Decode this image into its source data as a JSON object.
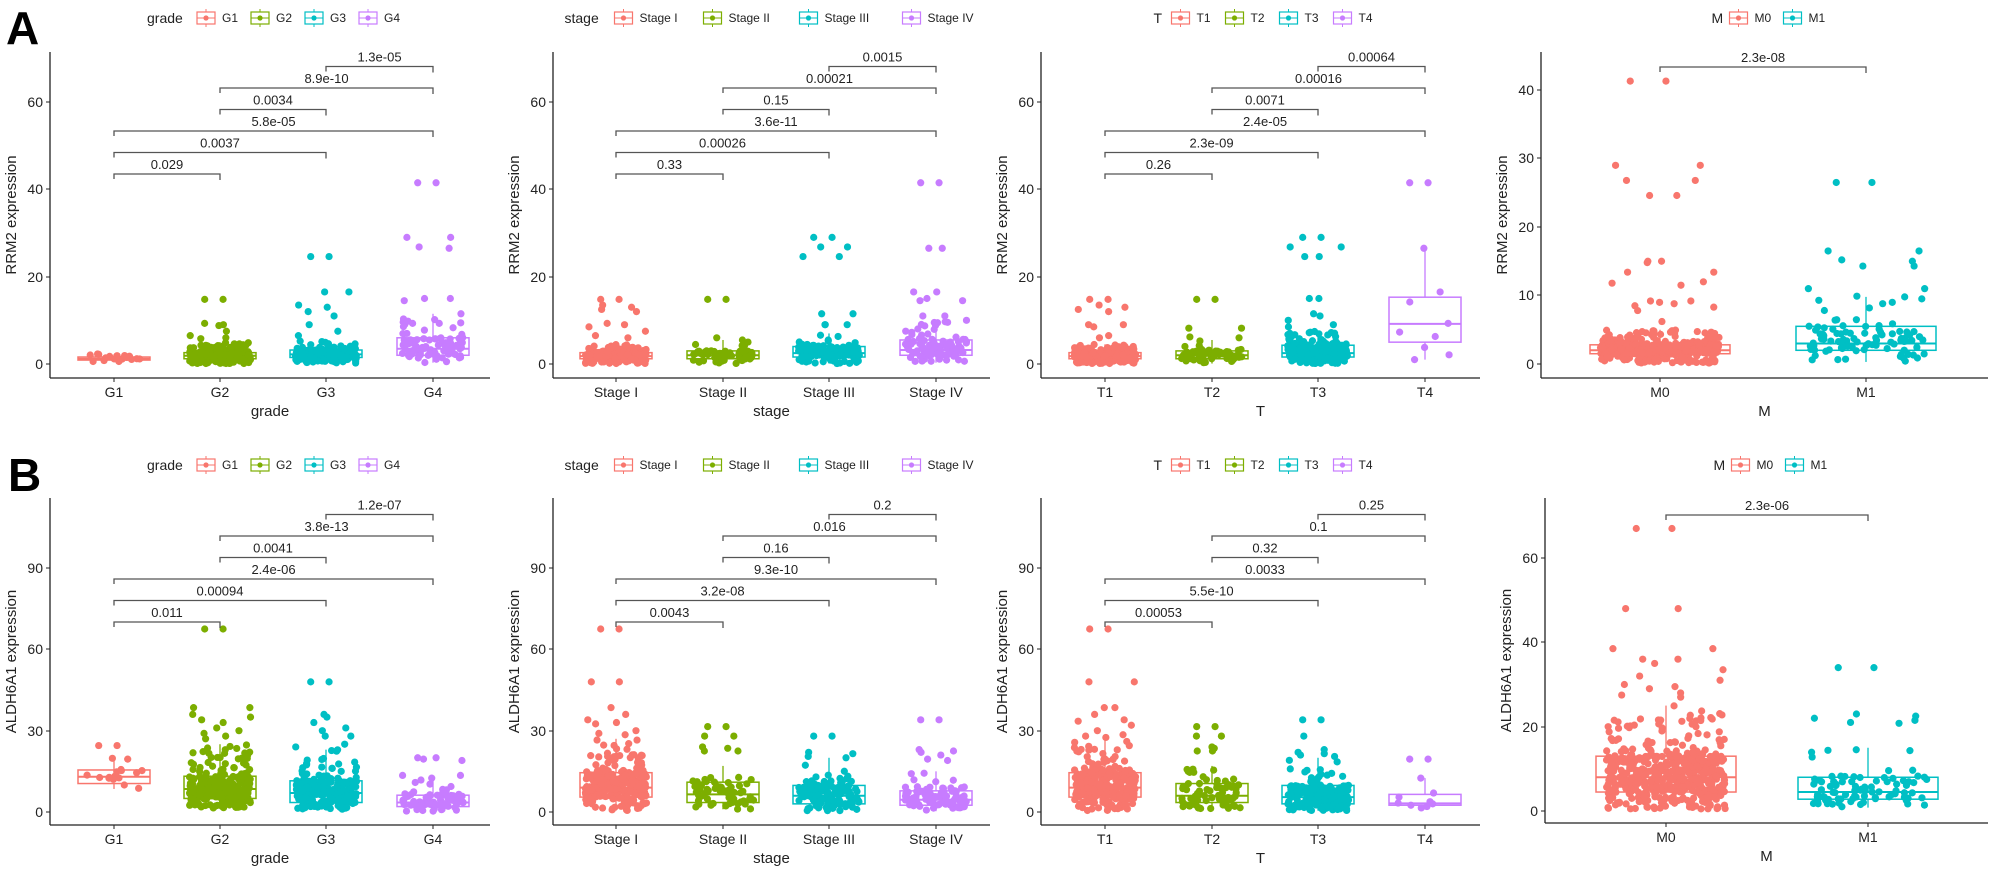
{
  "figure": {
    "panel_labels": [
      "A",
      "B"
    ],
    "palette": {
      "4": [
        "#F8766D",
        "#7CAE00",
        "#00BFC4",
        "#C77CFF"
      ],
      "2": [
        "#F8766D",
        "#00BFC4"
      ]
    },
    "bracket_color": "#555555",
    "axis_color": "#222222"
  },
  "chart_data": [
    {
      "id": "A-grade",
      "row": "A",
      "type": "box-jitter",
      "legend_title": "grade",
      "legend_position": "top",
      "categories": [
        "G1",
        "G2",
        "G3",
        "G4"
      ],
      "xlabel": "grade",
      "ylabel": "RRM2 expression",
      "yticks": [
        0,
        20,
        40,
        60
      ],
      "ylim": [
        -3,
        72
      ],
      "boxes": [
        {
          "q1": 0.9,
          "median": 1.2,
          "q3": 1.6,
          "wlo": 0.5,
          "whi": 2.2
        },
        {
          "q1": 1.2,
          "median": 1.9,
          "q3": 2.6,
          "wlo": 0.1,
          "whi": 5.0
        },
        {
          "q1": 1.5,
          "median": 2.2,
          "q3": 3.2,
          "wlo": 0.1,
          "whi": 5.5
        },
        {
          "q1": 2.0,
          "median": 3.5,
          "q3": 6.0,
          "wlo": 0.3,
          "whi": 11.5
        }
      ],
      "outliers": [
        [
          2.2,
          1.9,
          2.3
        ],
        [
          14.8,
          14.8,
          9.3,
          9.0,
          8.8,
          7.5,
          6.5,
          6.0,
          5.8
        ],
        [
          24.6,
          24.6,
          16.5,
          16.5,
          13.5,
          13.0,
          12.0,
          11.0,
          9.0,
          7.5,
          6.5
        ],
        [
          41.5,
          41.5,
          29.0,
          29.0,
          26.8,
          26.5,
          15.0,
          15.0,
          14.5,
          11.5,
          9.8,
          9.3,
          9.3,
          8.3,
          7.0
        ]
      ],
      "n_points": [
        14,
        300,
        200,
        80
      ],
      "comparisons": [
        {
          "from": 0,
          "to": 1,
          "p": "0.029"
        },
        {
          "from": 0,
          "to": 2,
          "p": "0.0037"
        },
        {
          "from": 0,
          "to": 3,
          "p": "5.8e-05"
        },
        {
          "from": 1,
          "to": 2,
          "p": "0.0034"
        },
        {
          "from": 1,
          "to": 3,
          "p": "8.9e-10"
        },
        {
          "from": 2,
          "to": 3,
          "p": "1.3e-05"
        }
      ]
    },
    {
      "id": "A-stage",
      "row": "A",
      "type": "box-jitter",
      "legend_title": "stage",
      "legend_position": "top",
      "categories": [
        "Stage I",
        "Stage II",
        "Stage III",
        "Stage IV"
      ],
      "xlabel": "stage",
      "ylabel": "RRM2 expression",
      "yticks": [
        0,
        20,
        40,
        60
      ],
      "ylim": [
        -3,
        72
      ],
      "boxes": [
        {
          "q1": 1.2,
          "median": 1.8,
          "q3": 2.6,
          "wlo": 0.1,
          "whi": 4.5
        },
        {
          "q1": 1.2,
          "median": 2.0,
          "q3": 3.0,
          "wlo": 0.1,
          "whi": 5.5
        },
        {
          "q1": 1.6,
          "median": 2.5,
          "q3": 4.0,
          "wlo": 0.1,
          "whi": 7.0
        },
        {
          "q1": 2.0,
          "median": 3.2,
          "q3": 5.5,
          "wlo": 0.3,
          "whi": 10.0
        }
      ],
      "outliers": [
        [
          14.8,
          14.8,
          13.5,
          13.0,
          12.5,
          12.0,
          9.3,
          9.0,
          8.5,
          7.5,
          6.5,
          6.0
        ],
        [
          14.8,
          14.8,
          6.0,
          5.5
        ],
        [
          29.0,
          29.0,
          26.8,
          26.8,
          24.6,
          24.6,
          11.5,
          11.5,
          9.0,
          9.0,
          9.0
        ],
        [
          41.5,
          41.5,
          26.5,
          26.5,
          16.5,
          16.5,
          15.0,
          14.5,
          14.5,
          11.0,
          11.0,
          10.0,
          9.5
        ]
      ],
      "n_points": [
        260,
        60,
        120,
        90
      ],
      "comparisons": [
        {
          "from": 0,
          "to": 1,
          "p": "0.33"
        },
        {
          "from": 0,
          "to": 2,
          "p": "0.00026"
        },
        {
          "from": 0,
          "to": 3,
          "p": "3.6e-11"
        },
        {
          "from": 1,
          "to": 2,
          "p": "0.15"
        },
        {
          "from": 1,
          "to": 3,
          "p": "0.00021"
        },
        {
          "from": 2,
          "to": 3,
          "p": "0.0015"
        }
      ]
    },
    {
      "id": "A-T",
      "row": "A",
      "type": "box-jitter",
      "legend_title": "T",
      "legend_position": "top",
      "categories": [
        "T1",
        "T2",
        "T3",
        "T4"
      ],
      "xlabel": "T",
      "ylabel": "RRM2 expression",
      "yticks": [
        0,
        20,
        40,
        60
      ],
      "ylim": [
        -3,
        72
      ],
      "boxes": [
        {
          "q1": 1.2,
          "median": 1.8,
          "q3": 2.6,
          "wlo": 0.1,
          "whi": 4.5
        },
        {
          "q1": 1.2,
          "median": 2.0,
          "q3": 3.0,
          "wlo": 0.1,
          "whi": 5.5
        },
        {
          "q1": 1.6,
          "median": 2.5,
          "q3": 4.3,
          "wlo": 0.1,
          "whi": 7.5
        },
        {
          "q1": 5.0,
          "median": 9.2,
          "q3": 15.3,
          "wlo": 1.0,
          "whi": 26.5
        }
      ],
      "outliers": [
        [
          14.8,
          14.8,
          13.5,
          13.0,
          12.5,
          12.0,
          9.0,
          9.0,
          8.5,
          6.5,
          6.0
        ],
        [
          14.8,
          14.8,
          8.2,
          8.2,
          6.2,
          6.0
        ],
        [
          29.0,
          29.0,
          26.8,
          26.8,
          24.6,
          24.6,
          15.0,
          15.0,
          11.5,
          11.0,
          10.0,
          9.0,
          8.5
        ],
        [
          41.5,
          41.5,
          26.5,
          16.5,
          14.2,
          9.3,
          7.3,
          6.3,
          3.8,
          2.1,
          1.0
        ]
      ],
      "n_points": [
        280,
        70,
        200,
        0
      ],
      "comparisons": [
        {
          "from": 0,
          "to": 1,
          "p": "0.26"
        },
        {
          "from": 0,
          "to": 2,
          "p": "2.3e-09"
        },
        {
          "from": 0,
          "to": 3,
          "p": "2.4e-05"
        },
        {
          "from": 1,
          "to": 2,
          "p": "0.0071"
        },
        {
          "from": 1,
          "to": 3,
          "p": "0.00016"
        },
        {
          "from": 2,
          "to": 3,
          "p": "0.00064"
        }
      ]
    },
    {
      "id": "A-M",
      "row": "A",
      "type": "box-jitter",
      "legend_title": "M",
      "legend_position": "top",
      "categories": [
        "M0",
        "M1"
      ],
      "xlabel": "M",
      "ylabel": "RRM2 expression",
      "yticks": [
        0,
        10,
        20,
        30,
        40
      ],
      "ylim": [
        -2,
        45
      ],
      "boxes": [
        {
          "q1": 1.5,
          "median": 2.0,
          "q3": 2.8,
          "wlo": 0.1,
          "whi": 5.0
        },
        {
          "q1": 2.0,
          "median": 3.0,
          "q3": 5.5,
          "wlo": 0.3,
          "whi": 9.8
        }
      ],
      "outliers": [
        [
          41.3,
          41.3,
          29.0,
          29.0,
          26.8,
          26.8,
          24.6,
          24.6,
          15.0,
          15.0,
          14.8,
          13.4,
          13.4,
          12.0,
          11.8,
          11.5,
          9.2,
          9.2,
          9.0,
          8.8,
          8.5,
          8.3,
          7.8,
          6.2
        ],
        [
          26.5,
          26.5,
          16.5,
          16.5,
          15.2,
          15.0,
          14.3,
          14.3,
          11.0,
          11.0,
          9.9,
          9.8,
          9.3,
          9.0
        ]
      ],
      "n_points": [
        500,
        90
      ],
      "comparisons": [
        {
          "from": 0,
          "to": 1,
          "p": "2.3e-08"
        }
      ]
    },
    {
      "id": "B-grade",
      "row": "B",
      "type": "box-jitter",
      "legend_title": "grade",
      "legend_position": "top",
      "categories": [
        "G1",
        "G2",
        "G3",
        "G4"
      ],
      "xlabel": "grade",
      "ylabel": "ALDH6A1 expression",
      "yticks": [
        0,
        30,
        60,
        90
      ],
      "ylim": [
        -4,
        116
      ],
      "boxes": [
        {
          "q1": 10.5,
          "median": 13.0,
          "q3": 15.5,
          "wlo": 8.5,
          "whi": 20.0
        },
        {
          "q1": 5.0,
          "median": 8.5,
          "q3": 13.2,
          "wlo": 1.5,
          "whi": 25.0
        },
        {
          "q1": 3.5,
          "median": 7.0,
          "q3": 11.5,
          "wlo": 1.0,
          "whi": 23.0
        },
        {
          "q1": 2.0,
          "median": 3.5,
          "q3": 6.2,
          "wlo": 0.3,
          "whi": 12.0
        }
      ],
      "outliers": [
        [
          24.5,
          24.5,
          19.8,
          19.5
        ],
        [
          67.5,
          67.5,
          38.5,
          38.5,
          36.0,
          35.0,
          34.0,
          33.0,
          31.0,
          30.0,
          29.0,
          28.0,
          27.0
        ],
        [
          48.0,
          48.0,
          36.0,
          35.0,
          33.0,
          31.0,
          30.0,
          28.0,
          28.0,
          25.0,
          24.0
        ],
        [
          20.0,
          20.0,
          19.5,
          19.0,
          13.5,
          13.5,
          12.5
        ]
      ],
      "n_points": [
        14,
        300,
        200,
        80
      ],
      "comparisons": [
        {
          "from": 0,
          "to": 1,
          "p": "0.011"
        },
        {
          "from": 0,
          "to": 2,
          "p": "0.00094"
        },
        {
          "from": 0,
          "to": 3,
          "p": "2.4e-06"
        },
        {
          "from": 1,
          "to": 2,
          "p": "0.0041"
        },
        {
          "from": 1,
          "to": 3,
          "p": "3.8e-13"
        },
        {
          "from": 2,
          "to": 3,
          "p": "1.2e-07"
        }
      ]
    },
    {
      "id": "B-stage",
      "row": "B",
      "type": "box-jitter",
      "legend_title": "stage",
      "legend_position": "top",
      "categories": [
        "Stage I",
        "Stage II",
        "Stage III",
        "Stage IV"
      ],
      "xlabel": "stage",
      "ylabel": "ALDH6A1 expression",
      "yticks": [
        0,
        30,
        60,
        90
      ],
      "ylim": [
        -4,
        116
      ],
      "boxes": [
        {
          "q1": 5.5,
          "median": 9.0,
          "q3": 14.5,
          "wlo": 0.5,
          "whi": 27.0
        },
        {
          "q1": 3.5,
          "median": 6.5,
          "q3": 11.0,
          "wlo": 1.0,
          "whi": 17.0
        },
        {
          "q1": 3.0,
          "median": 6.0,
          "q3": 9.8,
          "wlo": 0.5,
          "whi": 20.0
        },
        {
          "q1": 2.5,
          "median": 4.5,
          "q3": 7.8,
          "wlo": 0.3,
          "whi": 15.0
        }
      ],
      "outliers": [
        [
          67.5,
          67.5,
          48.0,
          48.0,
          38.5,
          36.0,
          34.0,
          33.0,
          32.5,
          30.0,
          29.0,
          28.5
        ],
        [
          31.5,
          31.5,
          28.0,
          28.0,
          24.0,
          23.5,
          22.5,
          22.5
        ],
        [
          28.0,
          28.0,
          22.0,
          21.5,
          20.5,
          20.0
        ],
        [
          34.0,
          34.0,
          23.0,
          22.5,
          22.0,
          21.0,
          19.5,
          19.0
        ]
      ],
      "n_points": [
        260,
        60,
        120,
        90
      ],
      "comparisons": [
        {
          "from": 0,
          "to": 1,
          "p": "0.0043"
        },
        {
          "from": 0,
          "to": 2,
          "p": "3.2e-08"
        },
        {
          "from": 0,
          "to": 3,
          "p": "9.3e-10"
        },
        {
          "from": 1,
          "to": 2,
          "p": "0.16"
        },
        {
          "from": 1,
          "to": 3,
          "p": "0.016"
        },
        {
          "from": 2,
          "to": 3,
          "p": "0.2"
        }
      ]
    },
    {
      "id": "B-T",
      "row": "B",
      "type": "box-jitter",
      "legend_title": "T",
      "legend_position": "top",
      "categories": [
        "T1",
        "T2",
        "T3",
        "T4"
      ],
      "xlabel": "T",
      "ylabel": "ALDH6A1 expression",
      "yticks": [
        0,
        30,
        60,
        90
      ],
      "ylim": [
        -4,
        116
      ],
      "boxes": [
        {
          "q1": 5.5,
          "median": 9.0,
          "q3": 14.5,
          "wlo": 0.5,
          "whi": 27.0
        },
        {
          "q1": 3.5,
          "median": 6.0,
          "q3": 10.5,
          "wlo": 1.0,
          "whi": 17.0
        },
        {
          "q1": 3.0,
          "median": 5.5,
          "q3": 9.8,
          "wlo": 0.5,
          "whi": 20.0
        },
        {
          "q1": 2.5,
          "median": 3.2,
          "q3": 6.5,
          "wlo": 1.5,
          "whi": 12.5
        }
      ],
      "outliers": [
        [
          67.5,
          67.5,
          48.0,
          48.0,
          38.5,
          38.5,
          36.0,
          34.0,
          33.5,
          32.0,
          30.0,
          28.5,
          28.0,
          27.5
        ],
        [
          31.5,
          31.5,
          28.0,
          28.0,
          24.0,
          23.5,
          22.5,
          22.5
        ],
        [
          34.0,
          34.0,
          28.0,
          23.0,
          22.0,
          21.5,
          21.0,
          20.5
        ],
        [
          19.5,
          19.5,
          12.5,
          7.0,
          5.5,
          3.8,
          3.3,
          3.0,
          2.5,
          2.0,
          1.5
        ]
      ],
      "n_points": [
        280,
        70,
        200,
        0
      ],
      "comparisons": [
        {
          "from": 0,
          "to": 1,
          "p": "0.00053"
        },
        {
          "from": 0,
          "to": 2,
          "p": "5.5e-10"
        },
        {
          "from": 0,
          "to": 3,
          "p": "0.0033"
        },
        {
          "from": 1,
          "to": 2,
          "p": "0.32"
        },
        {
          "from": 1,
          "to": 3,
          "p": "0.1"
        },
        {
          "from": 2,
          "to": 3,
          "p": "0.25"
        }
      ]
    },
    {
      "id": "B-M",
      "row": "B",
      "type": "box-jitter",
      "legend_title": "M",
      "legend_position": "top",
      "categories": [
        "M0",
        "M1"
      ],
      "xlabel": "M",
      "ylabel": "ALDH6A1 expression",
      "yticks": [
        0,
        20,
        40,
        60
      ],
      "ylim": [
        -3,
        72
      ],
      "boxes": [
        {
          "q1": 4.5,
          "median": 8.0,
          "q3": 13.0,
          "wlo": 0.5,
          "whi": 25.0
        },
        {
          "q1": 2.8,
          "median": 4.5,
          "q3": 8.0,
          "wlo": 0.8,
          "whi": 15.0
        }
      ],
      "outliers": [
        [
          67.0,
          67.0,
          48.0,
          48.0,
          38.5,
          38.5,
          36.0,
          36.0,
          35.0,
          33.5,
          32.0,
          31.0,
          30.0,
          29.5,
          29.0,
          28.0,
          27.5,
          27.0
        ],
        [
          34.0,
          34.0,
          23.0,
          22.5,
          22.0,
          21.5,
          21.0,
          20.8
        ]
      ],
      "n_points": [
        500,
        90
      ],
      "comparisons": [
        {
          "from": 0,
          "to": 1,
          "p": "2.3e-06"
        }
      ]
    }
  ]
}
